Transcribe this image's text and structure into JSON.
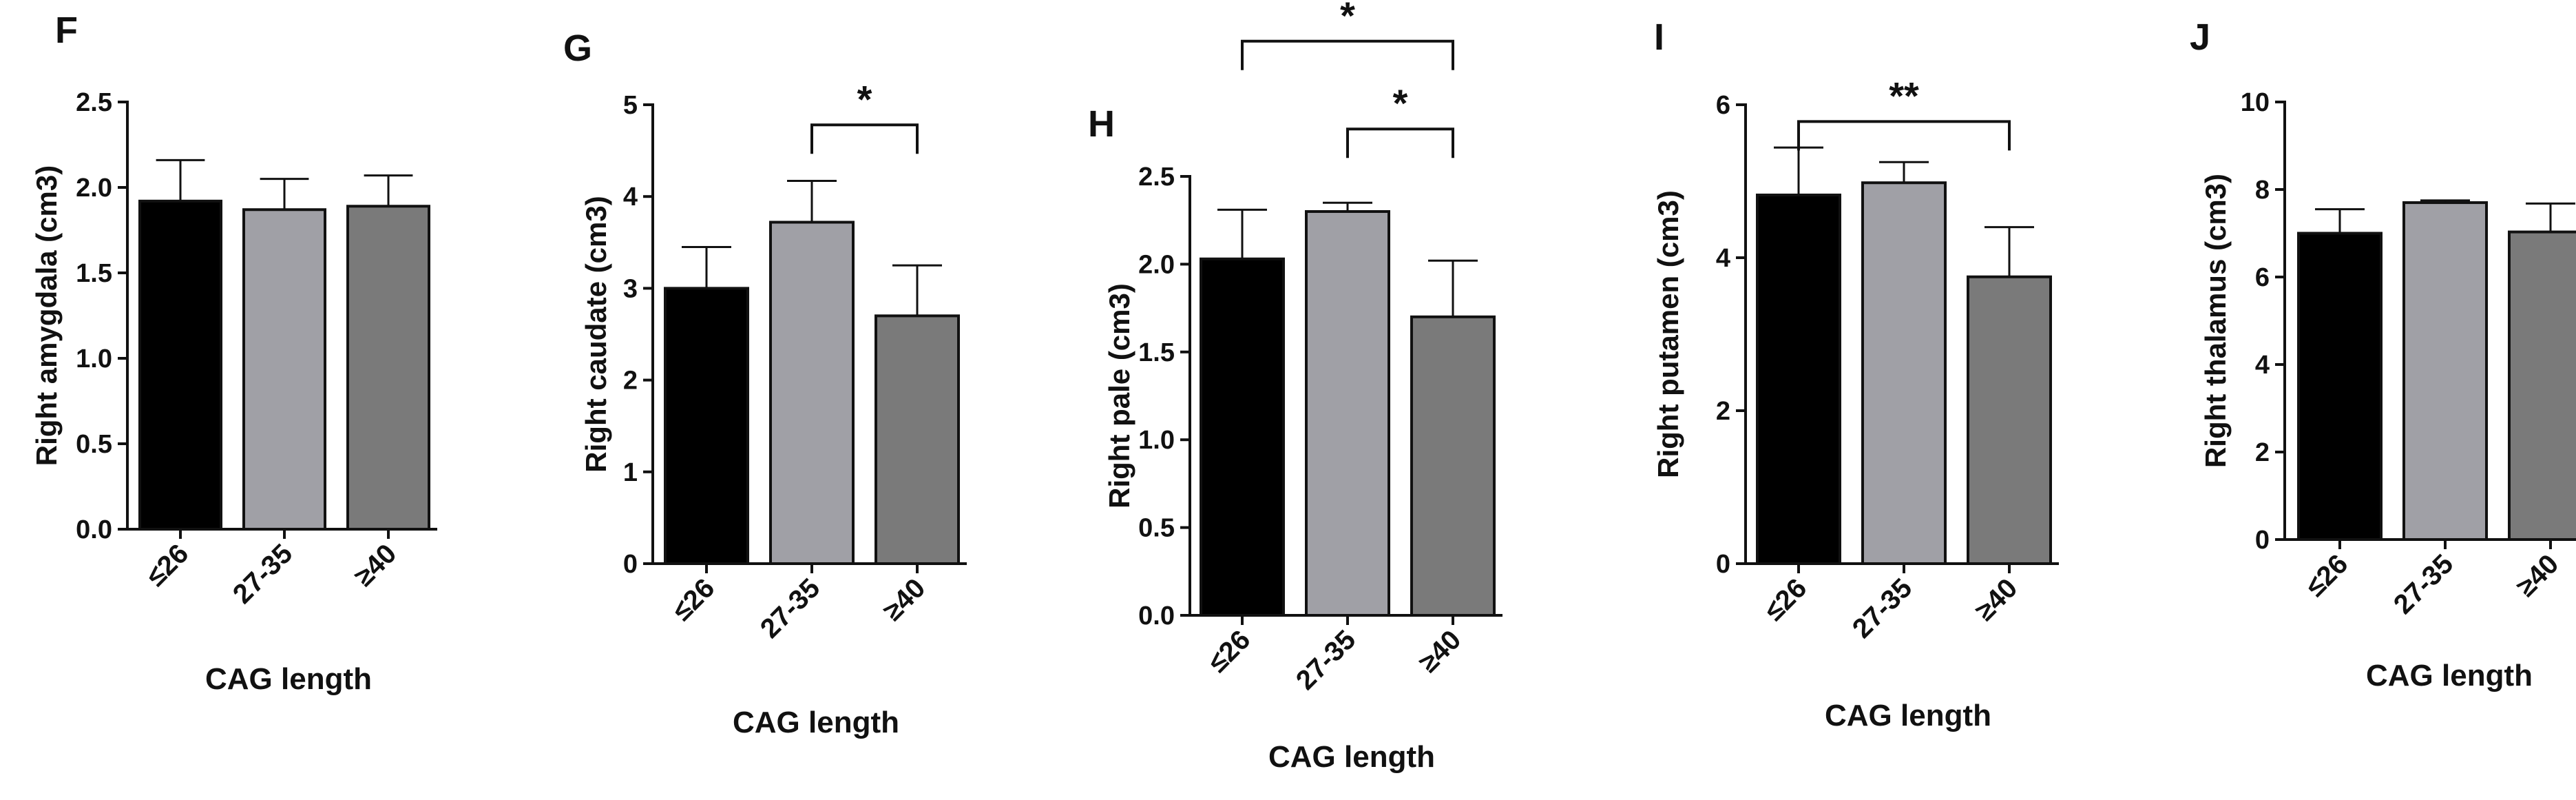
{
  "figure": {
    "colors": {
      "bar_1": "#000000",
      "bar_2": "#a0a0a6",
      "bar_3": "#7a7a7a",
      "axis": "#111111"
    }
  },
  "chart_data": [
    {
      "panel": "F",
      "type": "bar",
      "title": "",
      "xlabel": "CAG length",
      "ylabel": "Right amygdala (cm3)",
      "categories": [
        "≤26",
        "27-35",
        "≥40"
      ],
      "values": [
        1.92,
        1.87,
        1.89
      ],
      "errors": [
        0.24,
        0.18,
        0.18
      ],
      "ylim": [
        0,
        2.5
      ],
      "yticks": [
        0,
        0.5,
        1.0,
        1.5,
        2.0,
        2.5
      ],
      "ytick_labels": [
        "0.0",
        "0.5",
        "1.0",
        "1.5",
        "2.0",
        "2.5"
      ],
      "significance": []
    },
    {
      "panel": "G",
      "type": "bar",
      "title": "",
      "xlabel": "CAG length",
      "ylabel": "Right caudate (cm3)",
      "categories": [
        "≤26",
        "27-35",
        "≥40"
      ],
      "values": [
        3.0,
        3.72,
        2.7
      ],
      "errors": [
        0.45,
        0.45,
        0.55
      ],
      "ylim": [
        0,
        5
      ],
      "yticks": [
        0,
        1,
        2,
        3,
        4,
        5
      ],
      "ytick_labels": [
        "0",
        "1",
        "2",
        "3",
        "4",
        "5"
      ],
      "significance": [
        {
          "from": 1,
          "to": 2,
          "y": 4.78,
          "label": "*"
        }
      ]
    },
    {
      "panel": "H",
      "type": "bar",
      "title": "",
      "xlabel": "CAG length",
      "ylabel": "Right pale (cm3)",
      "categories": [
        "≤26",
        "27-35",
        "≥40"
      ],
      "values": [
        2.03,
        2.3,
        1.7
      ],
      "errors": [
        0.28,
        0.05,
        0.32
      ],
      "ylim": [
        0,
        2.5
      ],
      "yticks": [
        0,
        0.5,
        1.0,
        1.5,
        2.0,
        2.5
      ],
      "ytick_labels": [
        "0.0",
        "0.5",
        "1.0",
        "1.5",
        "2.0",
        "2.5"
      ],
      "significance": [
        {
          "from": 0,
          "to": 2,
          "y": 3.27,
          "label": "*"
        },
        {
          "from": 1,
          "to": 2,
          "y": 2.77,
          "label": "*"
        }
      ]
    },
    {
      "panel": "I",
      "type": "bar",
      "title": "",
      "xlabel": "CAG length",
      "ylabel": "Right putamen (cm3)",
      "categories": [
        "≤26",
        "27-35",
        "≥40"
      ],
      "values": [
        4.82,
        4.98,
        3.75
      ],
      "errors": [
        0.62,
        0.27,
        0.65
      ],
      "ylim": [
        0,
        6
      ],
      "yticks": [
        0,
        2,
        4,
        6
      ],
      "ytick_labels": [
        "0",
        "2",
        "4",
        "6"
      ],
      "significance": [
        {
          "from": 0,
          "to": 2,
          "y": 5.78,
          "label": "**"
        }
      ]
    },
    {
      "panel": "J",
      "type": "bar",
      "title": "",
      "xlabel": "CAG length",
      "ylabel": "Right thalamus (cm3)",
      "categories": [
        "≤26",
        "27-35",
        "≥40"
      ],
      "values": [
        7.0,
        7.7,
        7.03
      ],
      "errors": [
        0.55,
        0.05,
        0.65
      ],
      "ylim": [
        0,
        10
      ],
      "yticks": [
        0,
        2,
        4,
        6,
        8,
        10
      ],
      "ytick_labels": [
        "0",
        "2",
        "4",
        "6",
        "8",
        "10"
      ],
      "significance": []
    }
  ]
}
